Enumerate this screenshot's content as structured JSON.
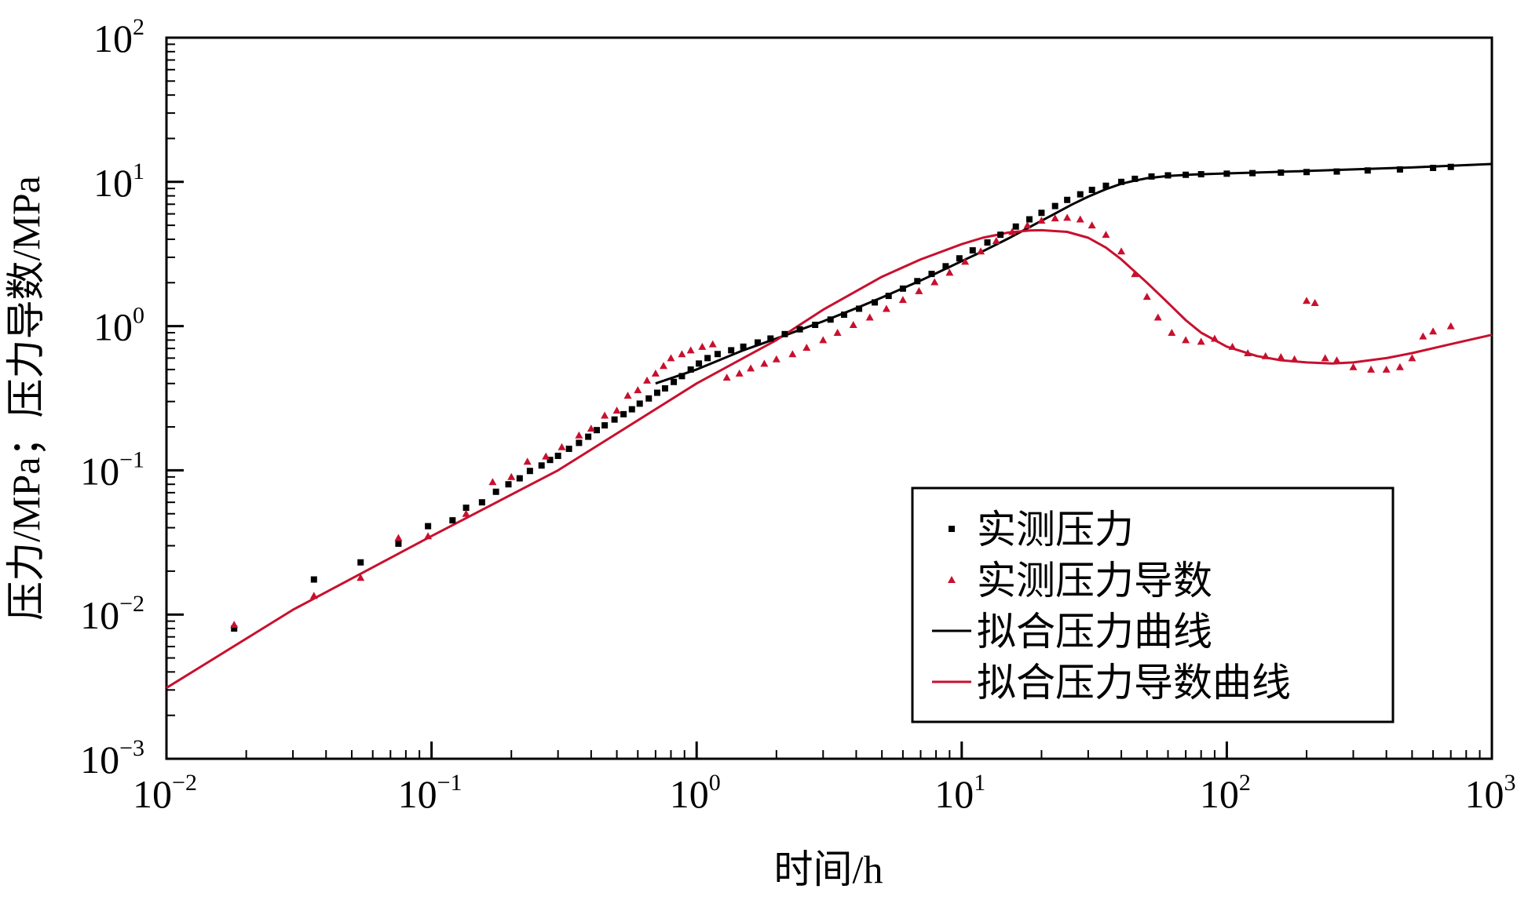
{
  "chart_data": {
    "type": "scatter",
    "xlabel": "时间/h",
    "ylabel": "压力/MPa；压力导数/MPa",
    "xscale": "log",
    "yscale": "log",
    "xlim": [
      0.01,
      1000
    ],
    "ylim": [
      0.001,
      100
    ],
    "grid": false,
    "legend_position": "bottom-right",
    "x_ticks": [
      {
        "value": 0.01,
        "base": "10",
        "exp": "−2"
      },
      {
        "value": 0.1,
        "base": "10",
        "exp": "−1"
      },
      {
        "value": 1,
        "base": "10",
        "exp": "0"
      },
      {
        "value": 10,
        "base": "10",
        "exp": "1"
      },
      {
        "value": 100,
        "base": "10",
        "exp": "2"
      },
      {
        "value": 1000,
        "base": "10",
        "exp": "3"
      }
    ],
    "y_ticks": [
      {
        "value": 0.001,
        "base": "10",
        "exp": "−3"
      },
      {
        "value": 0.01,
        "base": "10",
        "exp": "−2"
      },
      {
        "value": 0.1,
        "base": "10",
        "exp": "−1"
      },
      {
        "value": 1,
        "base": "10",
        "exp": "0"
      },
      {
        "value": 10,
        "base": "10",
        "exp": "1"
      },
      {
        "value": 100,
        "base": "10",
        "exp": "2"
      }
    ],
    "series": [
      {
        "name": "实测压力",
        "kind": "scatter",
        "marker": "square",
        "color": "#000000",
        "points": [
          [
            0.018,
            0.008
          ],
          [
            0.036,
            0.0175
          ],
          [
            0.054,
            0.023
          ],
          [
            0.075,
            0.031
          ],
          [
            0.097,
            0.041
          ],
          [
            0.12,
            0.045
          ],
          [
            0.135,
            0.055
          ],
          [
            0.155,
            0.06
          ],
          [
            0.175,
            0.071
          ],
          [
            0.195,
            0.08
          ],
          [
            0.215,
            0.088
          ],
          [
            0.235,
            0.099
          ],
          [
            0.26,
            0.108
          ],
          [
            0.28,
            0.118
          ],
          [
            0.3,
            0.126
          ],
          [
            0.33,
            0.141
          ],
          [
            0.36,
            0.155
          ],
          [
            0.39,
            0.171
          ],
          [
            0.42,
            0.19
          ],
          [
            0.45,
            0.205
          ],
          [
            0.49,
            0.225
          ],
          [
            0.53,
            0.245
          ],
          [
            0.57,
            0.265
          ],
          [
            0.61,
            0.29
          ],
          [
            0.66,
            0.315
          ],
          [
            0.71,
            0.345
          ],
          [
            0.76,
            0.37
          ],
          [
            0.82,
            0.41
          ],
          [
            0.88,
            0.45
          ],
          [
            0.95,
            0.5
          ],
          [
            1.02,
            0.55
          ],
          [
            1.1,
            0.6
          ],
          [
            1.2,
            0.64
          ],
          [
            1.35,
            0.68
          ],
          [
            1.5,
            0.72
          ],
          [
            1.7,
            0.77
          ],
          [
            1.9,
            0.82
          ],
          [
            2.15,
            0.88
          ],
          [
            2.45,
            0.95
          ],
          [
            2.8,
            1.02
          ],
          [
            3.2,
            1.11
          ],
          [
            3.6,
            1.2
          ],
          [
            4.1,
            1.32
          ],
          [
            4.7,
            1.46
          ],
          [
            5.3,
            1.62
          ],
          [
            6.0,
            1.82
          ],
          [
            6.8,
            2.05
          ],
          [
            7.7,
            2.3
          ],
          [
            8.7,
            2.6
          ],
          [
            9.8,
            2.95
          ],
          [
            11,
            3.35
          ],
          [
            12.5,
            3.8
          ],
          [
            14,
            4.3
          ],
          [
            16,
            4.9
          ],
          [
            18,
            5.5
          ],
          [
            20,
            6.1
          ],
          [
            22.5,
            6.8
          ],
          [
            25,
            7.5
          ],
          [
            28,
            8.2
          ],
          [
            31,
            8.8
          ],
          [
            35,
            9.4
          ],
          [
            40,
            10.0
          ],
          [
            45,
            10.5
          ],
          [
            52,
            10.9
          ],
          [
            60,
            11.1
          ],
          [
            70,
            11.2
          ],
          [
            80,
            11.3
          ],
          [
            100,
            11.4
          ],
          [
            125,
            11.5
          ],
          [
            160,
            11.6
          ],
          [
            200,
            11.7
          ],
          [
            260,
            11.8
          ],
          [
            340,
            12.0
          ],
          [
            450,
            12.2
          ],
          [
            600,
            12.5
          ],
          [
            700,
            12.7
          ]
        ]
      },
      {
        "name": "实测压力导数",
        "kind": "scatter",
        "marker": "triangle",
        "color": "#c8102e",
        "points": [
          [
            0.018,
            0.0085
          ],
          [
            0.036,
            0.0135
          ],
          [
            0.054,
            0.018
          ],
          [
            0.075,
            0.034
          ],
          [
            0.097,
            0.035
          ],
          [
            0.135,
            0.05
          ],
          [
            0.17,
            0.083
          ],
          [
            0.2,
            0.09
          ],
          [
            0.23,
            0.115
          ],
          [
            0.27,
            0.125
          ],
          [
            0.31,
            0.145
          ],
          [
            0.36,
            0.175
          ],
          [
            0.4,
            0.195
          ],
          [
            0.45,
            0.24
          ],
          [
            0.5,
            0.26
          ],
          [
            0.55,
            0.33
          ],
          [
            0.6,
            0.36
          ],
          [
            0.65,
            0.42
          ],
          [
            0.7,
            0.47
          ],
          [
            0.75,
            0.53
          ],
          [
            0.8,
            0.6
          ],
          [
            0.88,
            0.64
          ],
          [
            0.95,
            0.68
          ],
          [
            1.05,
            0.72
          ],
          [
            1.15,
            0.75
          ],
          [
            1.3,
            0.44
          ],
          [
            1.45,
            0.47
          ],
          [
            1.6,
            0.51
          ],
          [
            1.8,
            0.55
          ],
          [
            2.0,
            0.59
          ],
          [
            2.3,
            0.64
          ],
          [
            2.6,
            0.71
          ],
          [
            3.0,
            0.8
          ],
          [
            3.4,
            0.9
          ],
          [
            3.9,
            1.02
          ],
          [
            4.5,
            1.15
          ],
          [
            5.2,
            1.32
          ],
          [
            6.0,
            1.52
          ],
          [
            6.9,
            1.75
          ],
          [
            7.9,
            2.02
          ],
          [
            9.0,
            2.35
          ],
          [
            10.3,
            2.8
          ],
          [
            11.8,
            3.3
          ],
          [
            13.5,
            3.9
          ],
          [
            15.5,
            4.5
          ],
          [
            17.7,
            5.0
          ],
          [
            20,
            5.4
          ],
          [
            22.5,
            5.6
          ],
          [
            25,
            5.65
          ],
          [
            28,
            5.5
          ],
          [
            31,
            5.0
          ],
          [
            35,
            4.3
          ],
          [
            40,
            3.3
          ],
          [
            45,
            2.3
          ],
          [
            50,
            1.6
          ],
          [
            55,
            1.15
          ],
          [
            62,
            0.9
          ],
          [
            70,
            0.8
          ],
          [
            80,
            0.78
          ],
          [
            90,
            0.82
          ],
          [
            105,
            0.72
          ],
          [
            120,
            0.65
          ],
          [
            140,
            0.62
          ],
          [
            160,
            0.61
          ],
          [
            180,
            0.59
          ],
          [
            200,
            1.5
          ],
          [
            215,
            1.45
          ],
          [
            235,
            0.6
          ],
          [
            260,
            0.58
          ],
          [
            300,
            0.52
          ],
          [
            350,
            0.5
          ],
          [
            400,
            0.5
          ],
          [
            450,
            0.52
          ],
          [
            500,
            0.6
          ],
          [
            550,
            0.85
          ],
          [
            600,
            0.92
          ],
          [
            700,
            1.0
          ]
        ]
      },
      {
        "name": "拟合压力曲线",
        "kind": "line",
        "color": "#000000",
        "points": [
          [
            0.7,
            0.4
          ],
          [
            1.0,
            0.5
          ],
          [
            1.5,
            0.68
          ],
          [
            2,
            0.82
          ],
          [
            3,
            1.08
          ],
          [
            4,
            1.33
          ],
          [
            5,
            1.58
          ],
          [
            6,
            1.83
          ],
          [
            7,
            2.07
          ],
          [
            8,
            2.32
          ],
          [
            10,
            2.82
          ],
          [
            12,
            3.3
          ],
          [
            15,
            4.05
          ],
          [
            18,
            4.85
          ],
          [
            22,
            5.9
          ],
          [
            26,
            6.95
          ],
          [
            30,
            7.9
          ],
          [
            35,
            8.9
          ],
          [
            40,
            9.7
          ],
          [
            45,
            10.2
          ],
          [
            50,
            10.6
          ],
          [
            60,
            11.0
          ],
          [
            75,
            11.25
          ],
          [
            100,
            11.45
          ],
          [
            150,
            11.7
          ],
          [
            200,
            11.9
          ],
          [
            300,
            12.2
          ],
          [
            500,
            12.6
          ],
          [
            1000,
            13.3
          ]
        ]
      },
      {
        "name": "拟合压力导数曲线",
        "kind": "line",
        "color": "#c8102e",
        "points": [
          [
            0.01,
            0.0031
          ],
          [
            0.03,
            0.0108
          ],
          [
            0.1,
            0.035
          ],
          [
            0.3,
            0.1
          ],
          [
            1.0,
            0.4
          ],
          [
            2,
            0.8
          ],
          [
            3,
            1.3
          ],
          [
            5,
            2.2
          ],
          [
            7,
            2.9
          ],
          [
            10,
            3.7
          ],
          [
            12,
            4.1
          ],
          [
            15,
            4.45
          ],
          [
            18,
            4.6
          ],
          [
            20,
            4.62
          ],
          [
            25,
            4.5
          ],
          [
            30,
            4.1
          ],
          [
            35,
            3.5
          ],
          [
            40,
            2.9
          ],
          [
            50,
            2.0
          ],
          [
            60,
            1.45
          ],
          [
            70,
            1.1
          ],
          [
            80,
            0.9
          ],
          [
            100,
            0.72
          ],
          [
            130,
            0.62
          ],
          [
            160,
            0.58
          ],
          [
            200,
            0.56
          ],
          [
            250,
            0.55
          ],
          [
            300,
            0.56
          ],
          [
            400,
            0.6
          ],
          [
            500,
            0.65
          ],
          [
            700,
            0.75
          ],
          [
            1000,
            0.87
          ]
        ]
      }
    ]
  }
}
